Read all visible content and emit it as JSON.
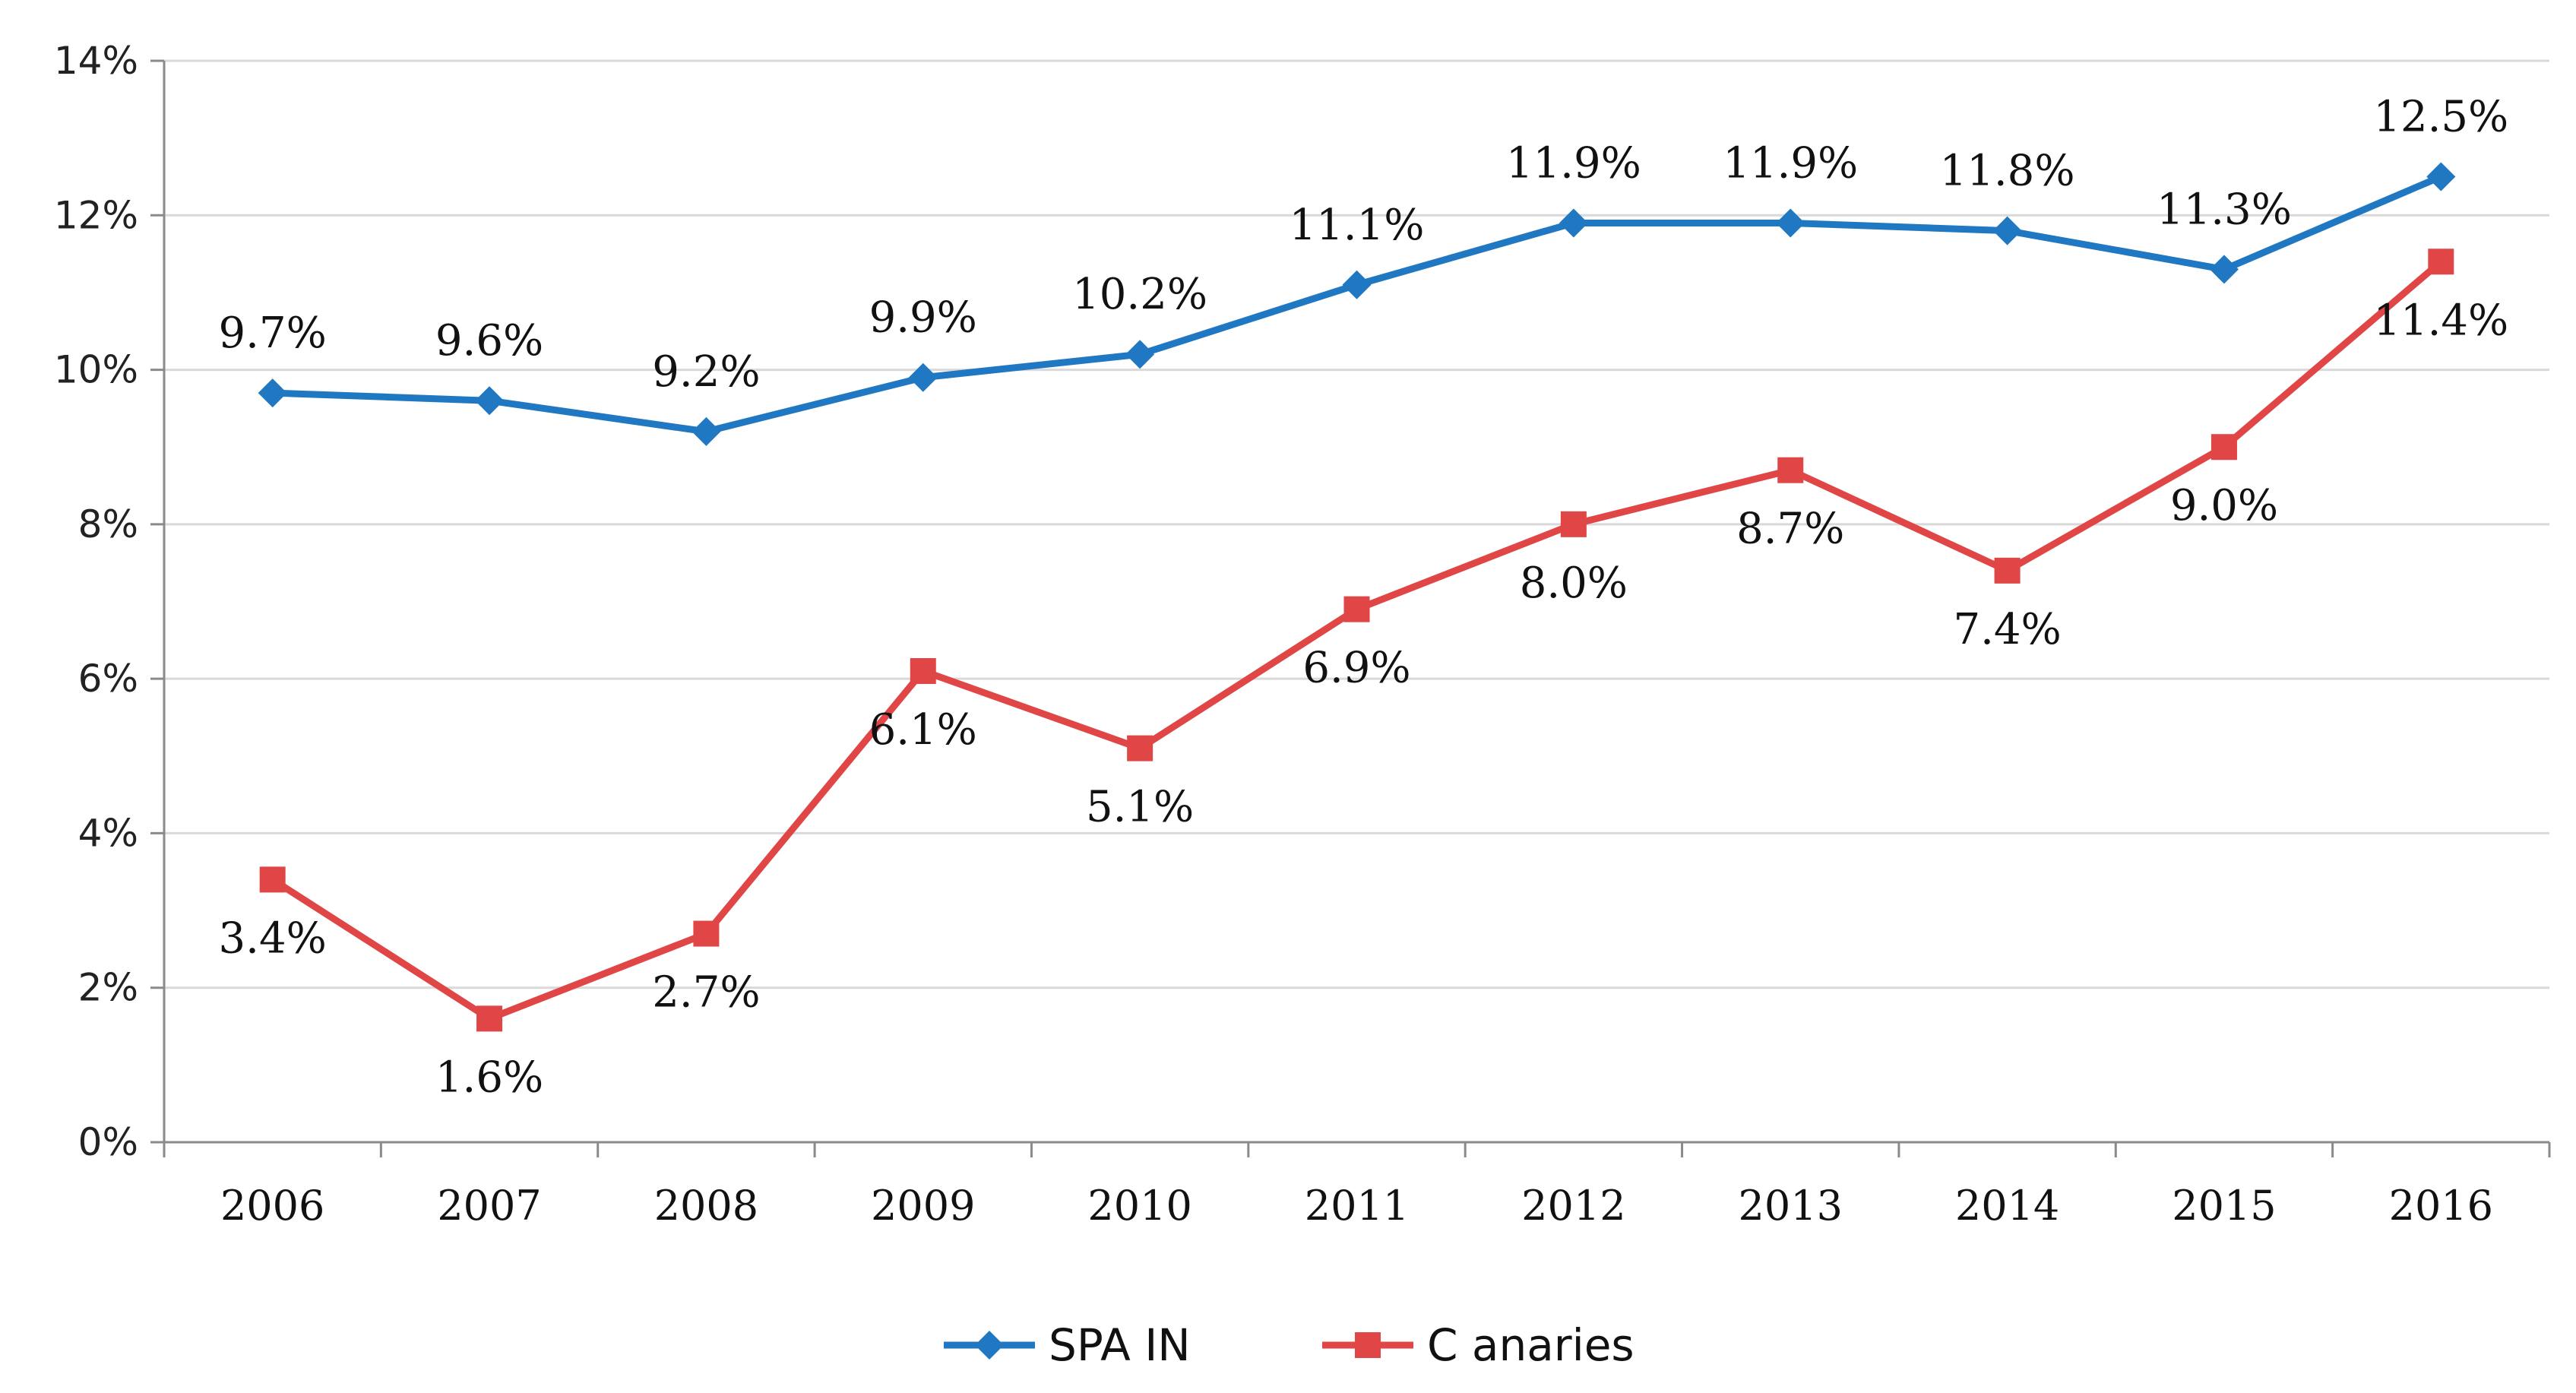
{
  "chart_data": {
    "type": "line",
    "categories": [
      "2006",
      "2007",
      "2008",
      "2009",
      "2010",
      "2011",
      "2012",
      "2013",
      "2014",
      "2015",
      "2016"
    ],
    "ylim": [
      0,
      14
    ],
    "ytick_values": [
      0,
      2,
      4,
      6,
      8,
      10,
      12,
      14
    ],
    "ytick_labels": [
      "0%",
      "2%",
      "4%",
      "6%",
      "8%",
      "10%",
      "12%",
      "14%"
    ],
    "series": [
      {
        "name": "SPA IN",
        "color": "#1F78C1",
        "marker": "diamond",
        "values": [
          9.7,
          9.6,
          9.2,
          9.9,
          10.2,
          11.1,
          11.9,
          11.9,
          11.8,
          11.3,
          12.5
        ],
        "labels": [
          "9.7%",
          "9.6%",
          "9.2%",
          "9.9%",
          "10.2%",
          "11.1%",
          "11.9%",
          "11.9%",
          "11.8%",
          "11.3%",
          "12.5%"
        ],
        "label_position": "above"
      },
      {
        "name": "C anaries",
        "color": "#E04646",
        "marker": "square",
        "values": [
          3.4,
          1.6,
          2.7,
          6.1,
          5.1,
          6.9,
          8.0,
          8.7,
          7.4,
          9.0,
          11.4
        ],
        "labels": [
          "3.4%",
          "1.6%",
          "2.7%",
          "6.1%",
          "5.1%",
          "6.9%",
          "8.0%",
          "8.7%",
          "7.4%",
          "9.0%",
          "11.4%"
        ],
        "label_position": "below"
      }
    ],
    "title": "",
    "xlabel": "",
    "ylabel": "",
    "grid": true,
    "legend_position": "bottom-center"
  }
}
